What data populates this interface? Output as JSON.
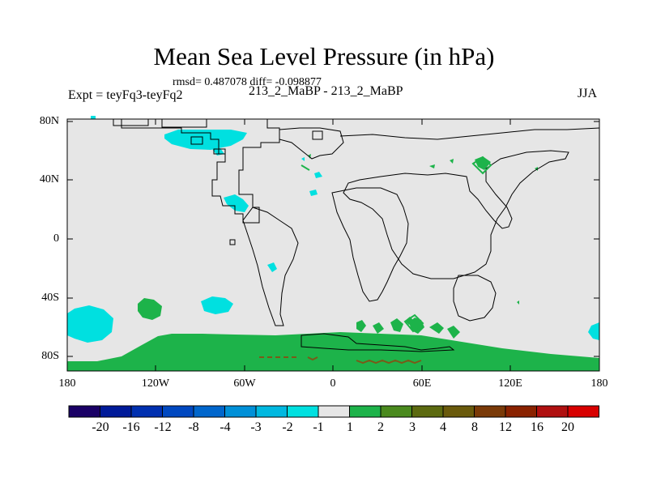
{
  "header": {
    "title": "Mean Sea Level Pressure (in hPa)",
    "stats": "rmsd= 0.487078  diff= -0.098877",
    "expt": "Expt = teyFq3-teyFq2",
    "case": "213_2_MaBP - 213_2_MaBP",
    "season": "JJA"
  },
  "axes": {
    "lat_labels": [
      "80N",
      "40N",
      "0",
      "40S",
      "80S"
    ],
    "lon_labels": [
      "180",
      "120W",
      "60W",
      "0",
      "60E",
      "120E",
      "180"
    ]
  },
  "colors": {
    "land": "#e6e6e6",
    "neg_minus1": "#00e0e0",
    "pos_1_2": "#1db34a",
    "pos_3_4": "#7a5a18",
    "coast": "#000000"
  },
  "colorbar": {
    "labels": [
      "-20",
      "-16",
      "-12",
      "-8",
      "-4",
      "-3",
      "-2",
      "-1",
      "1",
      "2",
      "3",
      "4",
      "8",
      "12",
      "16",
      "20"
    ],
    "colors": [
      "#1a0066",
      "#001a99",
      "#0030b0",
      "#0048c0",
      "#0066cc",
      "#0090d8",
      "#00b8e0",
      "#00e0e0",
      "#e6e6e6",
      "#1db34a",
      "#4a8a1e",
      "#5c6a10",
      "#6a5a0c",
      "#7a3a08",
      "#8a2200",
      "#b01010",
      "#d80000"
    ]
  }
}
